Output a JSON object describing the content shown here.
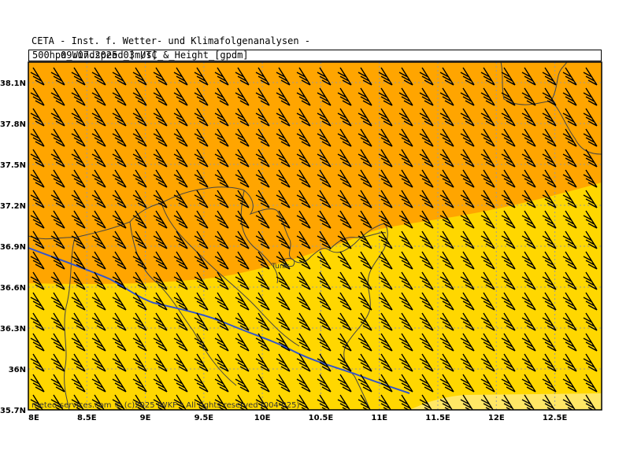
{
  "header": {
    "organization": "CETA - Inst. f. Wetter- und Klimafolgenanalysen -",
    "title": "500hpa_Windspeed_[m/s]_&_Height_[gpdm]",
    "datetime": "09.07.2025 03 UTC"
  },
  "map": {
    "lon_range": [
      8.0,
      12.9
    ],
    "lat_range": [
      35.7,
      38.25
    ],
    "lon_ticks": [
      "8E",
      "8.5E",
      "9E",
      "9.5E",
      "10E",
      "10.5E",
      "11E",
      "11.5E",
      "12E",
      "12.5E"
    ],
    "lon_tick_values": [
      8.0,
      8.5,
      9.0,
      9.5,
      10.0,
      10.5,
      11.0,
      11.5,
      12.0,
      12.5
    ],
    "lat_ticks": [
      "35.7N",
      "36N",
      "36.3N",
      "36.6N",
      "36.9N",
      "37.2N",
      "37.5N",
      "37.8N",
      "38.1N"
    ],
    "lat_tick_values": [
      35.7,
      36.0,
      36.3,
      36.6,
      36.9,
      37.2,
      37.5,
      37.8,
      38.1
    ],
    "city_label": "Tunis",
    "credit": "meteo-services.com © (c)2025 IWKF * All rights reserved (004-025)",
    "colors": {
      "zone_high": "#FFA500",
      "zone_mid": "#FFD700",
      "zone_low": "#FFE766",
      "barb": "#000000",
      "contour": "#3355cc",
      "grid": "#9a9aa0",
      "border": "#444444"
    },
    "wind_barb_direction": "west-north-west",
    "wind_barb_speed_mps": 30
  }
}
